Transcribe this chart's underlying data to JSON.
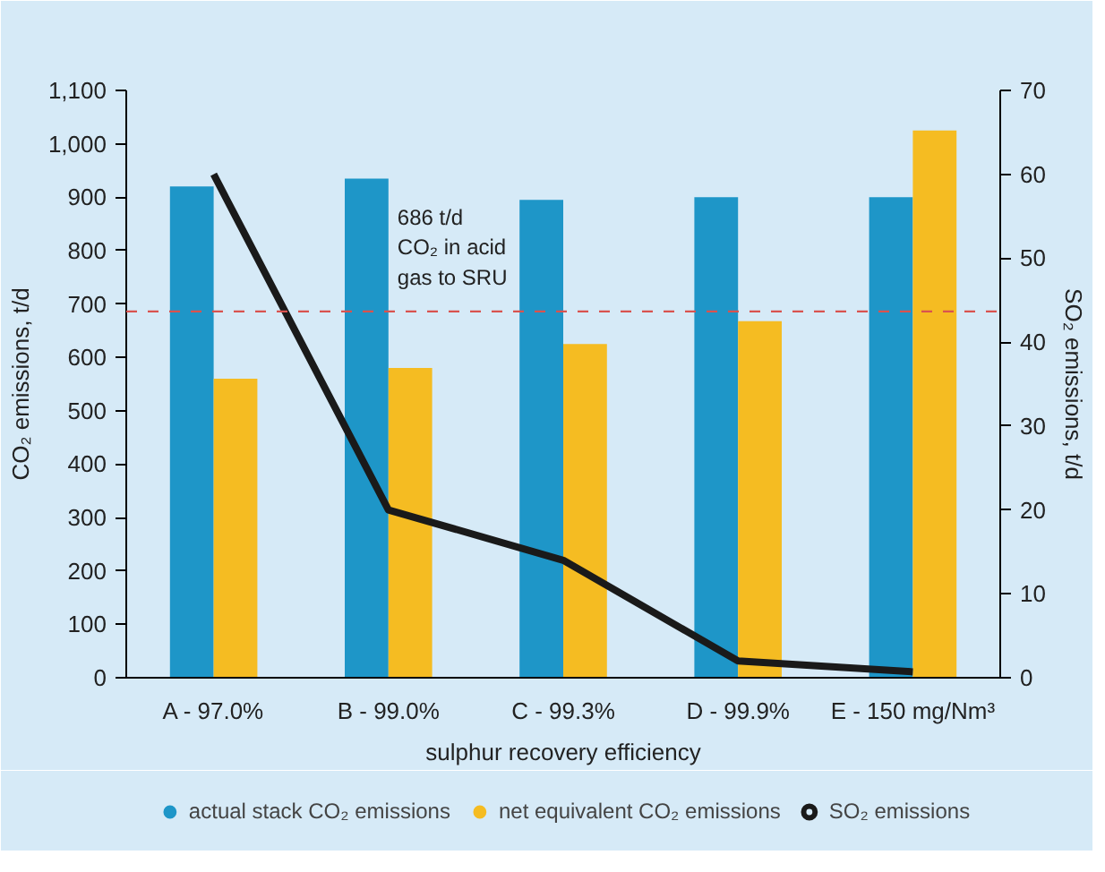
{
  "chart_data": {
    "type": "bar",
    "xlabel": "sulphur recovery efficiency",
    "ylabel": "CO₂ emissions, t/d",
    "y2label": "SO₂ emissions, t/d",
    "categories": [
      "A - 97.0%",
      "B - 99.0%",
      "C - 99.3%",
      "D - 99.9%",
      "E - 150 mg/Nm³"
    ],
    "series": [
      {
        "name": "actual stack CO₂ emissions",
        "color": "#1e96c8",
        "values": [
          920,
          935,
          895,
          900,
          900
        ]
      },
      {
        "name": "net equivalent CO₂ emissions",
        "color": "#f5bc22",
        "values": [
          560,
          580,
          625,
          668,
          1025
        ]
      },
      {
        "name": "SO₂ emissions",
        "type": "line",
        "axis": "y2",
        "color": "#1a1a1a",
        "values": [
          60,
          20,
          14,
          2,
          0.7
        ]
      }
    ],
    "ylim": [
      0,
      1100
    ],
    "yticks": [
      0,
      {
        "value": 100,
        "label": "100"
      },
      200,
      300,
      400,
      500,
      600,
      700,
      800,
      900,
      {
        "value": 1000,
        "label": "1,000"
      },
      {
        "value": 1100,
        "label": "1,100"
      }
    ],
    "y2lim": [
      0,
      70
    ],
    "y2ticks": [
      0,
      10,
      20,
      30,
      40,
      50,
      60,
      70
    ],
    "ref_lines": [
      {
        "axis": "y",
        "value": 686,
        "label": "686 t/d\nCO₂ in acid\ngas to SRU",
        "color": "#d9534f",
        "line_style": "dashed"
      }
    ],
    "grid": false,
    "legend": "bottom",
    "marker": "none",
    "line_style": "solid"
  }
}
